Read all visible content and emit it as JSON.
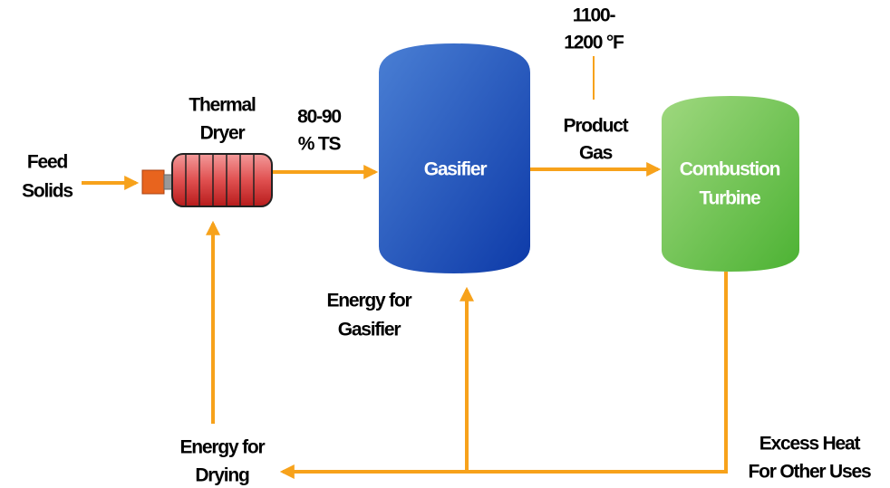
{
  "nodes": [
    {
      "label": [
        "Gasifier"
      ]
    },
    {
      "label": [
        "Combustion",
        "Turbine"
      ]
    }
  ],
  "labels": {
    "feed": [
      "Feed",
      "Solids"
    ],
    "dryer": [
      "Thermal",
      "Dryer"
    ],
    "ts": [
      "80-90",
      "% TS"
    ],
    "temperature": [
      "1100-",
      "1200 °F"
    ],
    "product_gas": [
      "Product",
      "Gas"
    ],
    "energy_gasifier": [
      "Energy for",
      "Gasifier"
    ],
    "energy_drying": [
      "Energy for",
      "Drying"
    ],
    "excess_heat": [
      "Excess Heat",
      "For Other Uses"
    ]
  }
}
